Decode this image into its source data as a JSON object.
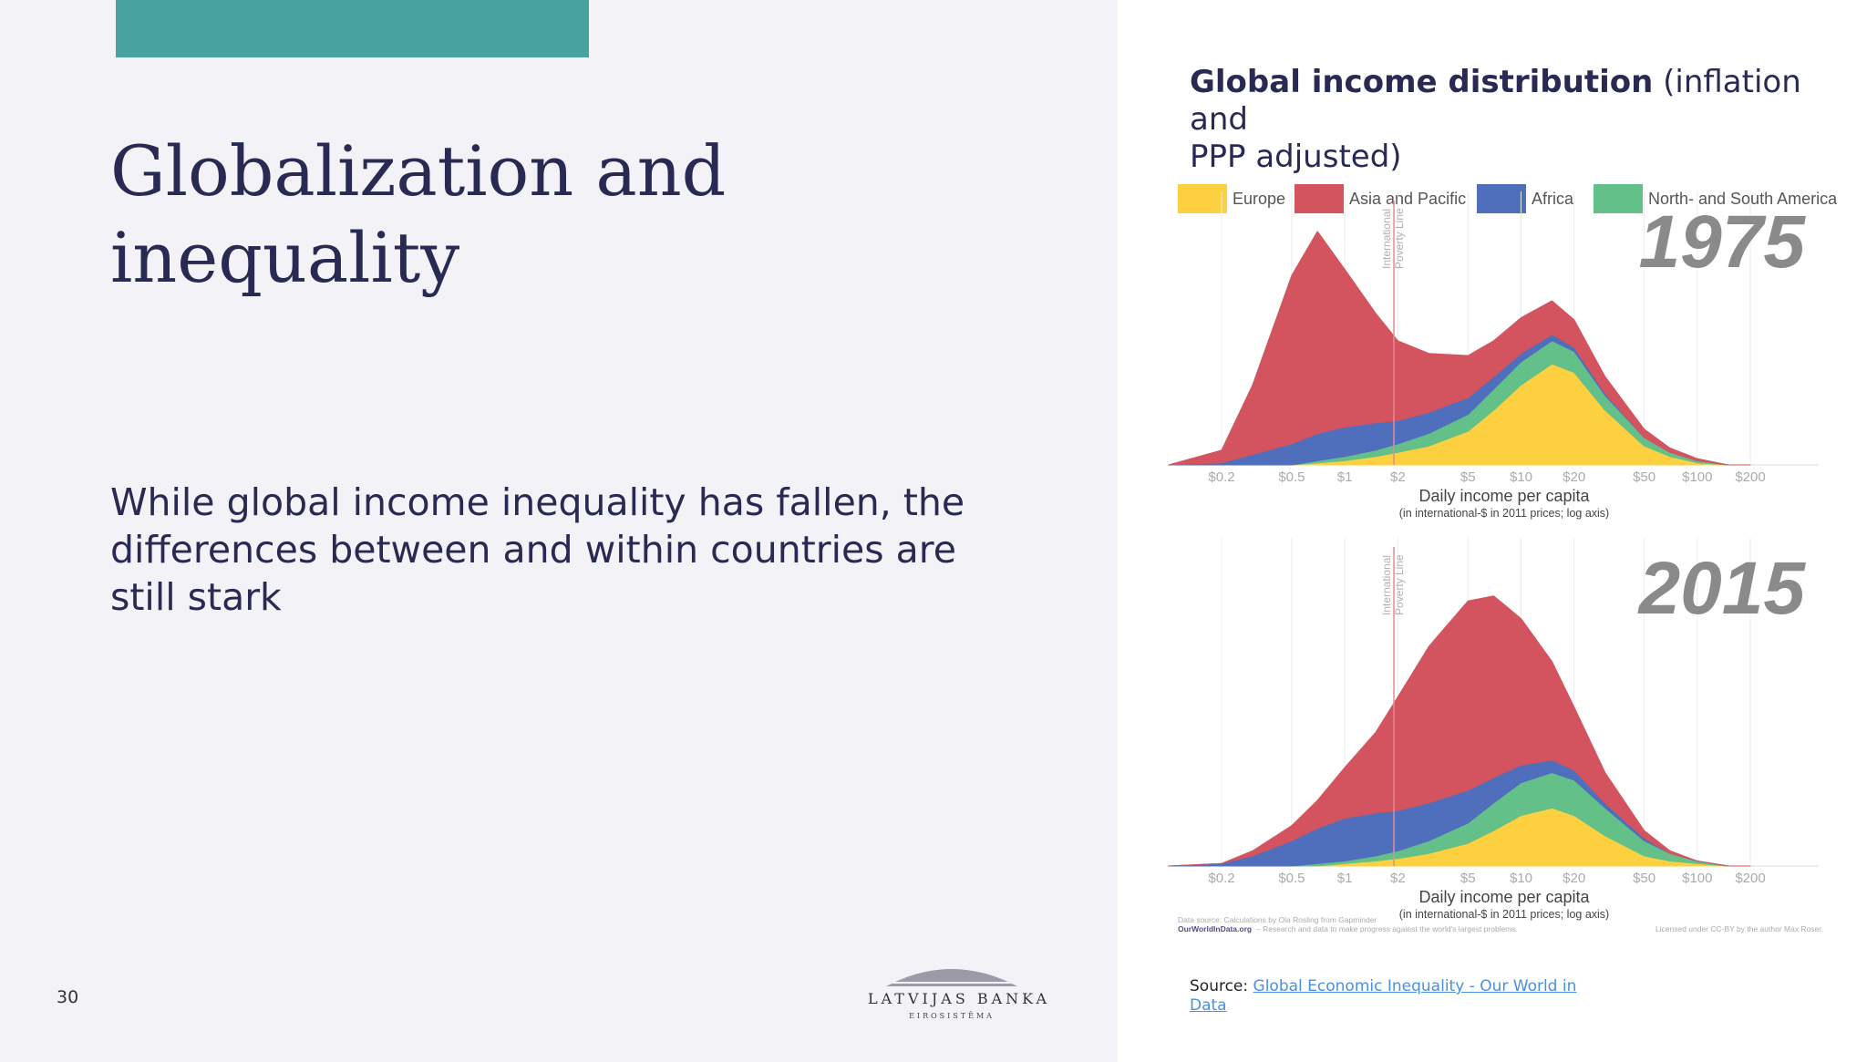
{
  "slide": {
    "title_line1": "Globalization and",
    "title_line2": "inequality",
    "body_line1": "While global income inequality has fallen, the",
    "body_line2": "differences between and within countries are",
    "body_line3": "still stark",
    "page_number": "30"
  },
  "logo": {
    "name": "LATVIJAS BANKA",
    "sub": "EIROSISTĒMA"
  },
  "right": {
    "title_bold": "Global income distribution",
    "title_rest": "(inflation and",
    "title_line2": "PPP adjusted)",
    "source_label": "Source:",
    "source_link_line1": "Global Economic Inequality - Our World in",
    "source_link_line2": "Data"
  },
  "colors": {
    "accent": "#48a2a0",
    "title": "#282a54",
    "link": "#4a90e2"
  },
  "chart_data": {
    "type": "area",
    "stacked": true,
    "legend": [
      {
        "name": "Europe",
        "color": "#fcd03f"
      },
      {
        "name": "Asia and Pacific",
        "color": "#d3545e"
      },
      {
        "name": "Africa",
        "color": "#4f6fbd"
      },
      {
        "name": "North- and South America",
        "color": "#63c088"
      }
    ],
    "x_ticks": [
      "$0.2",
      "$0.5",
      "$1",
      "$2",
      "$5",
      "$10",
      "$20",
      "$50",
      "$100",
      "$200"
    ],
    "xlabel": "Daily income per capita",
    "xlabel_sub": "(in international-$ in 2011 prices; log axis)",
    "x_scale": "log",
    "poverty_line_label": [
      "International",
      "Poverty Line"
    ],
    "poverty_line_x": 1.9,
    "panels": [
      {
        "year": "1975",
        "x": [
          0.1,
          0.2,
          0.3,
          0.5,
          0.7,
          1,
          1.5,
          2,
          3,
          5,
          7,
          10,
          15,
          20,
          30,
          50,
          70,
          100,
          150,
          200
        ],
        "series": [
          {
            "name": "Europe",
            "values": [
              0,
              0,
              0,
              0,
              0.01,
              0.02,
              0.04,
              0.06,
              0.09,
              0.16,
              0.26,
              0.38,
              0.48,
              0.44,
              0.26,
              0.09,
              0.04,
              0.01,
              0,
              0
            ]
          },
          {
            "name": "North- and South America",
            "values": [
              0,
              0,
              0,
              0,
              0.01,
              0.02,
              0.03,
              0.04,
              0.06,
              0.08,
              0.1,
              0.11,
              0.11,
              0.1,
              0.07,
              0.04,
              0.02,
              0.01,
              0,
              0
            ]
          },
          {
            "name": "Africa",
            "values": [
              0,
              0.01,
              0.05,
              0.1,
              0.13,
              0.14,
              0.13,
              0.11,
              0.1,
              0.08,
              0.06,
              0.04,
              0.03,
              0.02,
              0.01,
              0,
              0,
              0,
              0,
              0
            ]
          },
          {
            "name": "Asia and Pacific",
            "values": [
              0,
              0.06,
              0.33,
              0.8,
              0.96,
              0.75,
              0.52,
              0.38,
              0.28,
              0.2,
              0.17,
              0.17,
              0.16,
              0.13,
              0.08,
              0.04,
              0.02,
              0.01,
              0,
              0
            ]
          }
        ]
      },
      {
        "year": "2015",
        "x": [
          0.1,
          0.2,
          0.3,
          0.5,
          0.7,
          1,
          1.5,
          2,
          3,
          5,
          7,
          10,
          15,
          20,
          30,
          50,
          70,
          100,
          150,
          200
        ],
        "series": [
          {
            "name": "Europe",
            "values": [
              0,
              0,
              0,
              0,
              0,
              0.01,
              0.02,
              0.03,
              0.05,
              0.09,
              0.14,
              0.2,
              0.23,
              0.2,
              0.12,
              0.04,
              0.02,
              0.01,
              0,
              0
            ]
          },
          {
            "name": "North- and South America",
            "values": [
              0,
              0,
              0,
              0,
              0.01,
              0.01,
              0.02,
              0.03,
              0.05,
              0.08,
              0.11,
              0.13,
              0.14,
              0.14,
              0.11,
              0.06,
              0.03,
              0.01,
              0,
              0
            ]
          },
          {
            "name": "Africa",
            "values": [
              0,
              0.01,
              0.04,
              0.1,
              0.14,
              0.17,
              0.17,
              0.16,
              0.15,
              0.13,
              0.1,
              0.07,
              0.05,
              0.04,
              0.02,
              0.01,
              0,
              0,
              0,
              0
            ]
          },
          {
            "name": "Asia and Pacific",
            "values": [
              0,
              0,
              0.02,
              0.06,
              0.11,
              0.2,
              0.32,
              0.45,
              0.62,
              0.75,
              0.72,
              0.58,
              0.39,
              0.25,
              0.12,
              0.03,
              0.01,
              0,
              0,
              0
            ]
          }
        ]
      }
    ],
    "footer": {
      "line1": "Data source: Calculations by Ola Rosling from Gapminder",
      "site": "OurWorldInData.org",
      "tagline": "– Research and data to make progress against the world's largest problems.",
      "license": "Licensed under CC-BY by the author Max Roser."
    }
  }
}
